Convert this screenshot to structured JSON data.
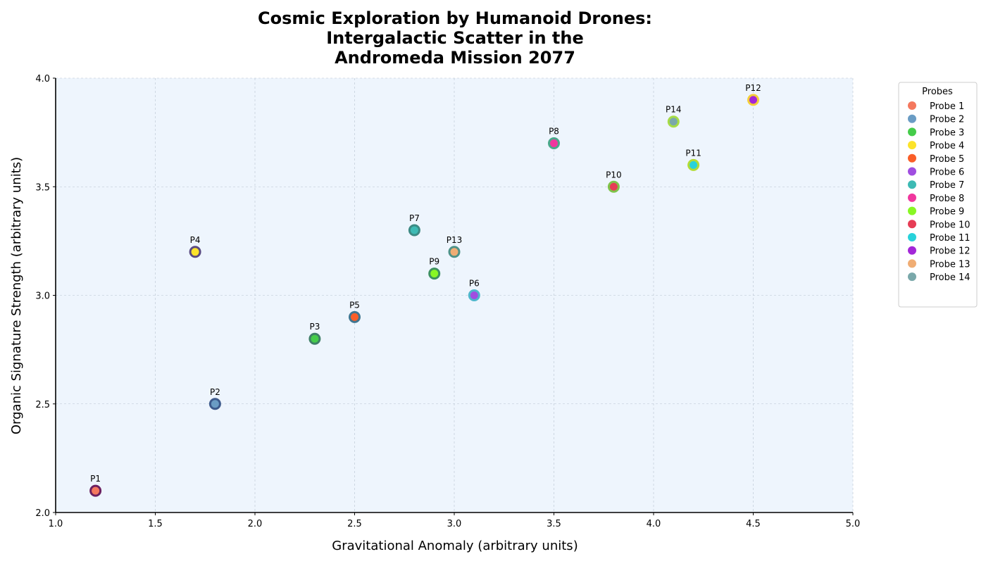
{
  "chart_data": {
    "type": "scatter",
    "title_lines": [
      "Cosmic Exploration by Humanoid Drones:",
      "Intergalactic Scatter in the",
      "Andromeda Mission 2077"
    ],
    "xlabel": "Gravitational Anomaly (arbitrary units)",
    "ylabel": "Organic Signature Strength (arbitrary units)",
    "xlim": [
      1.0,
      5.0
    ],
    "ylim": [
      2.0,
      4.0
    ],
    "xticks": [
      "1.0",
      "1.5",
      "2.0",
      "2.5",
      "3.0",
      "3.5",
      "4.0",
      "4.5",
      "5.0"
    ],
    "yticks": [
      "2.0",
      "2.5",
      "3.0",
      "3.5",
      "4.0"
    ],
    "grid": true,
    "plot_background": "#eef5fd",
    "legend": {
      "title": "Probes",
      "placement": "outside-top-right"
    },
    "points": [
      {
        "name": "Probe 1",
        "label": "P1",
        "x": 1.2,
        "y": 2.1,
        "fill": "#f4785e",
        "edge": "#6b2060"
      },
      {
        "name": "Probe 2",
        "label": "P2",
        "x": 1.8,
        "y": 2.5,
        "fill": "#6a9cc4",
        "edge": "#3d5a8c"
      },
      {
        "name": "Probe 3",
        "label": "P3",
        "x": 2.3,
        "y": 2.8,
        "fill": "#45cc4a",
        "edge": "#3f7f67"
      },
      {
        "name": "Probe 4",
        "label": "P4",
        "x": 1.7,
        "y": 3.2,
        "fill": "#fce32a",
        "edge": "#5a4a7f"
      },
      {
        "name": "Probe 5",
        "label": "P5",
        "x": 2.5,
        "y": 2.9,
        "fill": "#fa5e28",
        "edge": "#3f7590"
      },
      {
        "name": "Probe 6",
        "label": "P6",
        "x": 3.1,
        "y": 3.0,
        "fill": "#a04ee0",
        "edge": "#4fb6cc"
      },
      {
        "name": "Probe 7",
        "label": "P7",
        "x": 2.8,
        "y": 3.3,
        "fill": "#3dbab4",
        "edge": "#3c8a84"
      },
      {
        "name": "Probe 8",
        "label": "P8",
        "x": 3.5,
        "y": 3.7,
        "fill": "#f0379e",
        "edge": "#4aa88a"
      },
      {
        "name": "Probe 9",
        "label": "P9",
        "x": 2.9,
        "y": 3.1,
        "fill": "#88f724",
        "edge": "#3d9060"
      },
      {
        "name": "Probe 10",
        "label": "P10",
        "x": 3.8,
        "y": 3.5,
        "fill": "#e63d55",
        "edge": "#7ec44a"
      },
      {
        "name": "Probe 11",
        "label": "P11",
        "x": 4.2,
        "y": 3.6,
        "fill": "#28d2da",
        "edge": "#b2dc35"
      },
      {
        "name": "Probe 12",
        "label": "P12",
        "x": 4.5,
        "y": 3.9,
        "fill": "#a327d8",
        "edge": "#f4cf3a"
      },
      {
        "name": "Probe 13",
        "label": "P13",
        "x": 3.0,
        "y": 3.2,
        "fill": "#f0ad74",
        "edge": "#4e9288"
      },
      {
        "name": "Probe 14",
        "label": "P14",
        "x": 4.1,
        "y": 3.8,
        "fill": "#7aa8aa",
        "edge": "#a6dc45"
      }
    ]
  }
}
